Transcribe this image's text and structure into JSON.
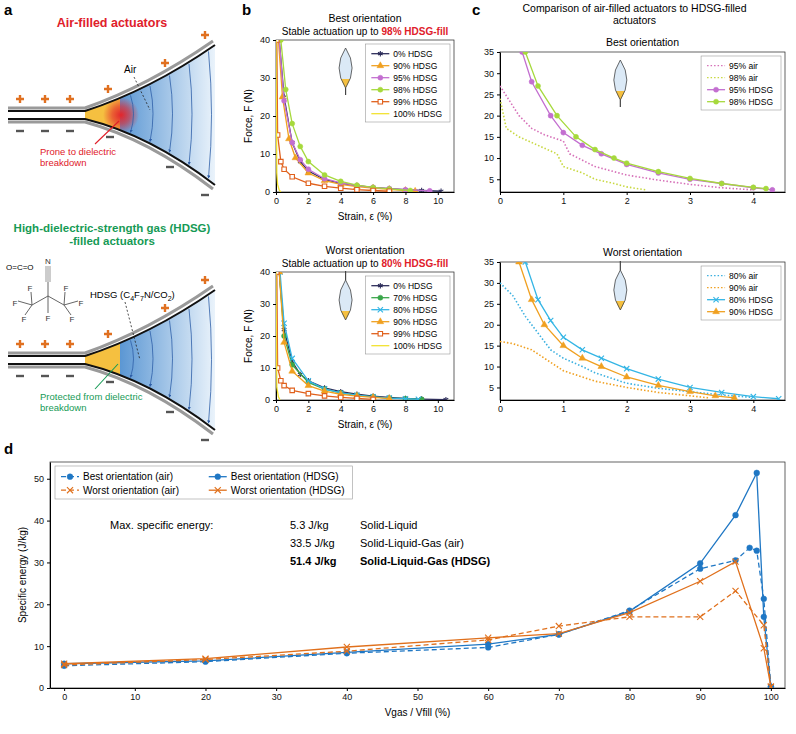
{
  "diagram": {
    "panel": "a",
    "air": {
      "title": "Air-filled actuators",
      "gas_label": "Air",
      "warning": "Prone to dielectric breakdown"
    },
    "hdsg": {
      "title": "High-dielectric-strength gas (HDSG) -filled actuators",
      "gas_label": "HDSG (C4F7N/CO2)",
      "note": "Protected from dielectric breakdown",
      "co2": "O=C=O",
      "atoms": [
        "N",
        "F",
        "F",
        "F",
        "F",
        "F",
        "F",
        "F"
      ]
    }
  },
  "chart_data": [
    {
      "type": "line",
      "panel": "b",
      "title": "Best orientation",
      "subtitle": {
        "text": "Stable actuation up to",
        "highlight": "98% HDSG-fill"
      },
      "x_label": "Strain, ε (%)",
      "y_label": "Force, F (N)",
      "xlim": [
        0,
        11
      ],
      "ylim": [
        0,
        40
      ],
      "xticks": [
        0,
        2,
        4,
        6,
        8,
        10
      ],
      "yticks": [
        0,
        10,
        20,
        30,
        40
      ],
      "grid": false,
      "legend": "top-right",
      "series": [
        {
          "name": "0% HDSG",
          "color": "#2d2d5a",
          "marker": "asterisk",
          "line_style": "solid",
          "x": [
            0.2,
            0.5,
            1,
            1.5,
            2,
            3,
            4,
            5,
            6,
            7,
            8,
            9,
            10.2
          ],
          "values": [
            40,
            25,
            13,
            8,
            5.5,
            3.3,
            2.3,
            1.7,
            1.2,
            0.9,
            0.6,
            0.4,
            0.2
          ]
        },
        {
          "name": "90% HDSG",
          "color": "#f0a020",
          "marker": "triangle",
          "line_style": "solid",
          "x": [
            0.15,
            0.4,
            0.8,
            1.2,
            2,
            3,
            4,
            5,
            6,
            7,
            8,
            8.6
          ],
          "values": [
            40,
            25,
            14,
            9,
            5,
            3,
            2,
            1.4,
            1,
            0.7,
            0.4,
            0.2
          ]
        },
        {
          "name": "95% HDSG",
          "color": "#c36fd0",
          "marker": "circle",
          "line_style": "solid",
          "x": [
            0.2,
            0.5,
            1,
            1.5,
            2,
            3,
            4,
            5,
            6,
            7,
            8,
            9.5
          ],
          "values": [
            40,
            24,
            13,
            8.5,
            6,
            3.5,
            2.4,
            1.7,
            1.2,
            0.9,
            0.6,
            0.3
          ]
        },
        {
          "name": "98% HDSG",
          "color": "#a6d93c",
          "marker": "circle",
          "line_style": "solid",
          "x": [
            0.3,
            0.6,
            1,
            1.5,
            2,
            3,
            4,
            5,
            6,
            7,
            8.3
          ],
          "values": [
            40,
            27,
            18,
            12,
            8,
            4.5,
            2.8,
            1.8,
            1.2,
            0.8,
            0.4
          ]
        },
        {
          "name": "99% HDSG",
          "color": "#e0601c",
          "marker": "square",
          "line_style": "solid",
          "x": [
            0.05,
            0.1,
            0.3,
            0.5,
            1,
            2,
            3,
            4,
            5,
            6,
            7
          ],
          "values": [
            40,
            15,
            8,
            6,
            4,
            2.3,
            1.5,
            1,
            0.6,
            0.4,
            0.2
          ]
        },
        {
          "name": "100% HDSG",
          "color": "#f2e230",
          "marker": "none",
          "line_style": "solid",
          "x": [
            0,
            0.05,
            0.1,
            0.2,
            0.3
          ],
          "values": [
            40,
            5,
            2,
            0.5,
            0
          ]
        }
      ]
    },
    {
      "type": "line",
      "title": "Worst orientation",
      "subtitle": {
        "text": "Stable actuation up to",
        "highlight": "80% HDSG-fill"
      },
      "x_label": "Strain, ε (%)",
      "y_label": "Force, F (N)",
      "xlim": [
        0,
        11
      ],
      "ylim": [
        0,
        40
      ],
      "xticks": [
        0,
        2,
        4,
        6,
        8,
        10
      ],
      "yticks": [
        0,
        10,
        20,
        30,
        40
      ],
      "grid": false,
      "legend": "top-right",
      "series": [
        {
          "name": "0% HDSG",
          "color": "#2d2d5a",
          "marker": "asterisk",
          "line_style": "solid",
          "x": [
            0.2,
            0.5,
            1,
            1.5,
            2,
            3,
            4,
            5,
            6,
            7,
            8,
            9,
            10.5
          ],
          "values": [
            40,
            22,
            12,
            8,
            6,
            3.8,
            2.6,
            1.8,
            1.2,
            0.8,
            0.5,
            0.3,
            0.1
          ]
        },
        {
          "name": "70% HDSG",
          "color": "#3aa64a",
          "marker": "circle",
          "line_style": "solid",
          "x": [
            0.2,
            0.5,
            1,
            2,
            3,
            4,
            5,
            6,
            7,
            8,
            9
          ],
          "values": [
            40,
            20,
            11,
            5.5,
            3.4,
            2.2,
            1.5,
            1,
            0.6,
            0.4,
            0.2
          ]
        },
        {
          "name": "80% HDSG",
          "color": "#33b5e5",
          "marker": "x",
          "line_style": "solid",
          "x": [
            0.25,
            0.5,
            1,
            2,
            3,
            4,
            5,
            6,
            7,
            8,
            8.8
          ],
          "values": [
            40,
            24,
            13,
            6,
            3.5,
            2.2,
            1.5,
            1,
            0.6,
            0.4,
            0.2
          ]
        },
        {
          "name": "90% HDSG",
          "color": "#f0a020",
          "marker": "triangle",
          "line_style": "solid",
          "x": [
            0.2,
            0.5,
            1,
            2,
            3,
            4,
            5,
            6,
            7
          ],
          "values": [
            40,
            18,
            9,
            4.5,
            2.8,
            1.8,
            1.2,
            0.8,
            0.4
          ]
        },
        {
          "name": "99% HDSG",
          "color": "#e0601c",
          "marker": "square",
          "line_style": "solid",
          "x": [
            0.05,
            0.1,
            0.3,
            0.5,
            1,
            2,
            3,
            4,
            5,
            6
          ],
          "values": [
            40,
            10,
            6,
            4.5,
            3,
            2,
            1.3,
            0.8,
            0.5,
            0.2
          ]
        },
        {
          "name": "100% HDSG",
          "color": "#f2e230",
          "marker": "none",
          "line_style": "solid",
          "x": [
            0,
            0.05,
            0.15,
            0.25
          ],
          "values": [
            40,
            4,
            1,
            0
          ]
        }
      ]
    },
    {
      "type": "line",
      "panel": "c",
      "header": "Comparison of air-filled actuators to HDSG-filled actuators",
      "title": "Best orientation",
      "xlim": [
        0,
        4.5
      ],
      "ylim": [
        2,
        35
      ],
      "xticks": [
        0,
        1,
        2,
        3,
        4
      ],
      "yticks": [
        5,
        10,
        15,
        20,
        25,
        30,
        35
      ],
      "grid": false,
      "legend": "top-right",
      "series": [
        {
          "name": "95% air",
          "color": "#d670b8",
          "marker": "none",
          "line_style": "dotted",
          "x": [
            0,
            0.3,
            0.5,
            0.7,
            1,
            1.1,
            1.5,
            2,
            2.5,
            3,
            3.5,
            4
          ],
          "values": [
            27,
            20,
            17,
            15.5,
            14,
            11,
            8,
            6,
            4.8,
            3.8,
            3,
            2.5
          ]
        },
        {
          "name": "98% air",
          "color": "#c8d840",
          "marker": "none",
          "line_style": "dotted",
          "x": [
            0,
            0.1,
            0.3,
            0.6,
            0.9,
            1,
            1.3,
            1.5,
            1.8,
            2,
            2.3
          ],
          "values": [
            24,
            17,
            15,
            13,
            11,
            8,
            6.5,
            5,
            4,
            3.2,
            2.5
          ]
        },
        {
          "name": "95% HDSG",
          "color": "#c36fd0",
          "marker": "circle",
          "line_style": "solid",
          "x": [
            0.35,
            0.5,
            0.8,
            1,
            1.3,
            1.6,
            2,
            2.5,
            3,
            3.5,
            4,
            4.3
          ],
          "values": [
            35,
            28,
            20,
            16,
            13,
            11,
            8.5,
            6.5,
            5,
            4,
            3,
            2.5
          ]
        },
        {
          "name": "98% HDSG",
          "color": "#a6d93c",
          "marker": "circle",
          "line_style": "solid",
          "x": [
            0.4,
            0.6,
            0.9,
            1.2,
            1.5,
            1.8,
            2,
            2.5,
            3,
            3.5,
            4,
            4.2
          ],
          "values": [
            35,
            27,
            20,
            15,
            12,
            10,
            8.8,
            6.8,
            5.2,
            4,
            3.1,
            2.8
          ]
        }
      ]
    },
    {
      "type": "line",
      "title": "Worst orientation",
      "xlim": [
        0,
        4.5
      ],
      "ylim": [
        2,
        35
      ],
      "xticks": [
        0,
        1,
        2,
        3,
        4
      ],
      "yticks": [
        5,
        10,
        15,
        20,
        25,
        30,
        35
      ],
      "grid": false,
      "legend": "top-right",
      "series": [
        {
          "name": "80% air",
          "color": "#3ab0e0",
          "marker": "none",
          "line_style": "dotted",
          "x": [
            0,
            0.2,
            0.4,
            0.6,
            0.8,
            1,
            1.3,
            1.5,
            2,
            2.5,
            3,
            3.5,
            4
          ],
          "values": [
            30,
            27,
            22,
            18,
            14,
            12,
            10,
            8.5,
            6,
            4.8,
            4,
            3.2,
            2.6
          ]
        },
        {
          "name": "90% air",
          "color": "#f0a020",
          "marker": "none",
          "line_style": "dotted",
          "x": [
            0,
            0.2,
            0.5,
            0.8,
            1,
            1.5,
            2,
            2.5,
            3,
            3.3
          ],
          "values": [
            16,
            15.5,
            14,
            11,
            9,
            6.5,
            5,
            3.8,
            3,
            2.5
          ]
        },
        {
          "name": "80% HDSG",
          "color": "#33b5e5",
          "marker": "x",
          "line_style": "solid",
          "x": [
            0.4,
            0.6,
            0.8,
            1,
            1.3,
            1.6,
            2,
            2.5,
            3,
            3.5,
            4,
            4.4
          ],
          "values": [
            35,
            26,
            21,
            17,
            14,
            12,
            9.5,
            7,
            5,
            3.8,
            2.8,
            2.3
          ]
        },
        {
          "name": "90% HDSG",
          "color": "#f0a020",
          "marker": "triangle",
          "line_style": "solid",
          "x": [
            0.3,
            0.5,
            0.7,
            1,
            1.3,
            1.6,
            2,
            2.5,
            3,
            3.4,
            3.7
          ],
          "values": [
            35,
            26,
            20,
            15,
            12,
            10,
            7.5,
            5.5,
            4,
            3,
            2.5
          ]
        }
      ]
    },
    {
      "type": "line",
      "panel": "d",
      "x_label": "Vgas / Vfill (%)",
      "y_label": "Specific energy (J/kg)",
      "xlim": [
        -2,
        102
      ],
      "ylim": [
        0,
        54
      ],
      "xticks": [
        0,
        10,
        20,
        30,
        40,
        50,
        60,
        70,
        80,
        90,
        100
      ],
      "yticks": [
        0,
        10,
        20,
        30,
        40,
        50
      ],
      "grid": false,
      "legend": "top-left",
      "annotation_title": "Max. specific energy:",
      "annotations": [
        {
          "value": "5.3 J/kg",
          "label": "Solid-Liquid"
        },
        {
          "value": "33.5 J/kg",
          "label": "Solid-Liquid-Gas (air)"
        },
        {
          "value": "51.4 J/kg",
          "label": "Solid-Liquid-Gas (HDSG)"
        }
      ],
      "series": [
        {
          "name": "Best orientation (air)",
          "color": "#1f77c4",
          "marker": "circle",
          "line_style": "dashed",
          "x": [
            0,
            20,
            40,
            60,
            70,
            80,
            90,
            95,
            97,
            98,
            99,
            100
          ],
          "values": [
            5.3,
            6.3,
            8.3,
            9.7,
            12.8,
            18.5,
            28.5,
            30.5,
            33.5,
            32.8,
            21.3,
            0.3
          ]
        },
        {
          "name": "Best orientation (HDSG)",
          "color": "#1f77c4",
          "marker": "circle",
          "line_style": "solid",
          "x": [
            0,
            20,
            40,
            60,
            70,
            80,
            90,
            95,
            98,
            99,
            100
          ],
          "values": [
            5.8,
            6.5,
            8.5,
            10.5,
            12.8,
            18.3,
            29.8,
            41.3,
            51.4,
            17,
            0.3
          ]
        },
        {
          "name": "Worst orientation (air)",
          "color": "#e0701c",
          "marker": "x",
          "line_style": "dashed",
          "x": [
            0,
            20,
            40,
            60,
            70,
            80,
            90,
            95,
            99,
            100
          ],
          "values": [
            5.5,
            6.8,
            8.8,
            11.5,
            14.8,
            17,
            17,
            23.2,
            15,
            0.3
          ]
        },
        {
          "name": "Worst orientation (HDSG)",
          "color": "#e0701c",
          "marker": "x",
          "line_style": "solid",
          "x": [
            0,
            20,
            40,
            60,
            70,
            80,
            90,
            95,
            99,
            100
          ],
          "values": [
            5.8,
            7,
            9.8,
            12,
            13,
            18,
            25.5,
            30.2,
            9.5,
            0.3
          ]
        }
      ]
    }
  ]
}
